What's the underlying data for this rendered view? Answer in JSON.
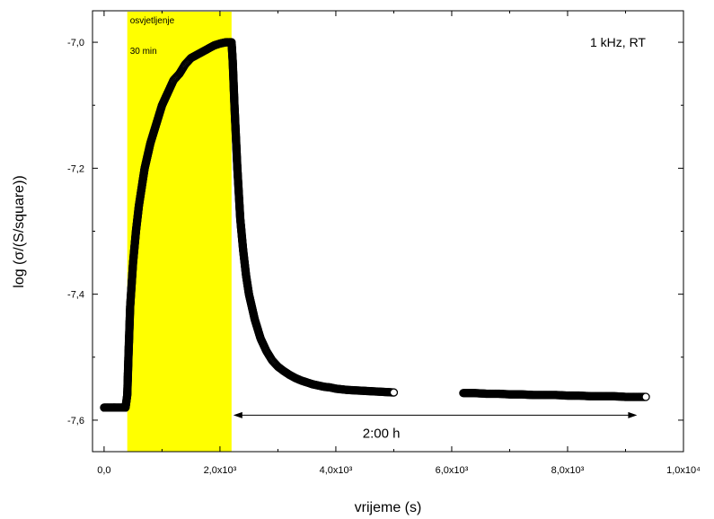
{
  "chart_data": {
    "type": "scatter",
    "xlabel": "vrijeme (s)",
    "ylabel": "log (σ/(S/square))",
    "xlim": [
      -200,
      10000
    ],
    "ylim": [
      -7.65,
      -6.95
    ],
    "x_ticks": [
      {
        "value": 0,
        "label": "0,0"
      },
      {
        "value": 2000,
        "label": "2,0x10³"
      },
      {
        "value": 4000,
        "label": "4,0x10³"
      },
      {
        "value": 6000,
        "label": "6,0x10³"
      },
      {
        "value": 8000,
        "label": "8,0x10³"
      },
      {
        "value": 10000,
        "label": "1,0x10⁴"
      }
    ],
    "y_ticks": [
      {
        "value": -7.0,
        "label": "-7,0"
      },
      {
        "value": -7.2,
        "label": "-7,2"
      },
      {
        "value": -7.4,
        "label": "-7,4"
      },
      {
        "value": -7.6,
        "label": "-7,6"
      }
    ],
    "highlight": {
      "x_start": 400,
      "x_end": 2200,
      "color": "#ffff00",
      "label_line1": "osvjetljenje",
      "label_line2": "30 min"
    },
    "condition_label": "1 kHz, RT",
    "arrow": {
      "x_start": 2200,
      "x_end": 9200,
      "y": -7.592,
      "label": "2:00 h"
    },
    "series": [
      {
        "marker": "open-circle",
        "color": "#000000",
        "x": [
          0,
          100,
          200,
          300,
          370,
          400,
          420,
          450,
          500,
          550,
          600,
          700,
          800,
          900,
          1000,
          1100,
          1200,
          1300,
          1400,
          1500,
          1600,
          1700,
          1800,
          1900,
          2000,
          2100,
          2150,
          2200,
          2220,
          2250,
          2300,
          2350,
          2400,
          2450,
          2500,
          2600,
          2700,
          2800,
          2900,
          3000,
          3100,
          3200,
          3300,
          3400,
          3500,
          3600,
          3700,
          3800,
          3900,
          4000,
          4200,
          4400,
          4600,
          4800,
          5000,
          6200,
          6400,
          6600,
          6800,
          7000,
          7200,
          7400,
          7600,
          7800,
          8000,
          8200,
          8400,
          8600,
          8800,
          9000,
          9200,
          9350
        ],
        "y": [
          -7.58,
          -7.58,
          -7.58,
          -7.58,
          -7.58,
          -7.56,
          -7.5,
          -7.42,
          -7.35,
          -7.3,
          -7.26,
          -7.2,
          -7.16,
          -7.13,
          -7.1,
          -7.08,
          -7.06,
          -7.05,
          -7.035,
          -7.025,
          -7.02,
          -7.015,
          -7.01,
          -7.005,
          -7.002,
          -7.0,
          -7.0,
          -7.0,
          -7.03,
          -7.1,
          -7.2,
          -7.28,
          -7.33,
          -7.37,
          -7.4,
          -7.44,
          -7.47,
          -7.49,
          -7.505,
          -7.515,
          -7.522,
          -7.528,
          -7.533,
          -7.537,
          -7.54,
          -7.543,
          -7.545,
          -7.547,
          -7.548,
          -7.55,
          -7.552,
          -7.553,
          -7.554,
          -7.555,
          -7.556,
          -7.557,
          -7.557,
          -7.558,
          -7.558,
          -7.559,
          -7.559,
          -7.56,
          -7.56,
          -7.56,
          -7.561,
          -7.561,
          -7.562,
          -7.562,
          -7.562,
          -7.563,
          -7.563,
          -7.563
        ]
      }
    ]
  }
}
